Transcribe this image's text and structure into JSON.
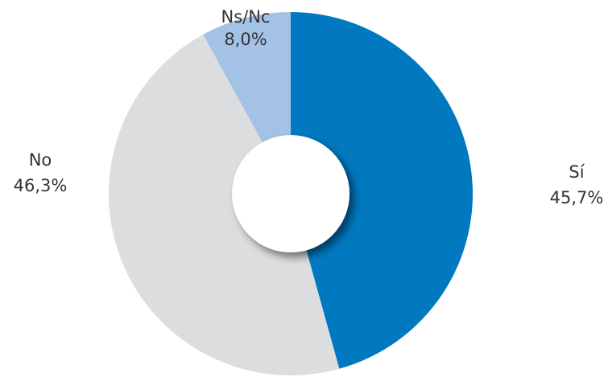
{
  "chart_data": {
    "type": "pie",
    "categories": [
      "Sí",
      "No",
      "Ns/Nc"
    ],
    "values": [
      45.7,
      46.3,
      8.0
    ],
    "value_labels": [
      "45,7%",
      "46,3%",
      "8,0%"
    ],
    "colors": [
      "#0079c1",
      "#dcdddf",
      "#a4c2e6"
    ]
  }
}
